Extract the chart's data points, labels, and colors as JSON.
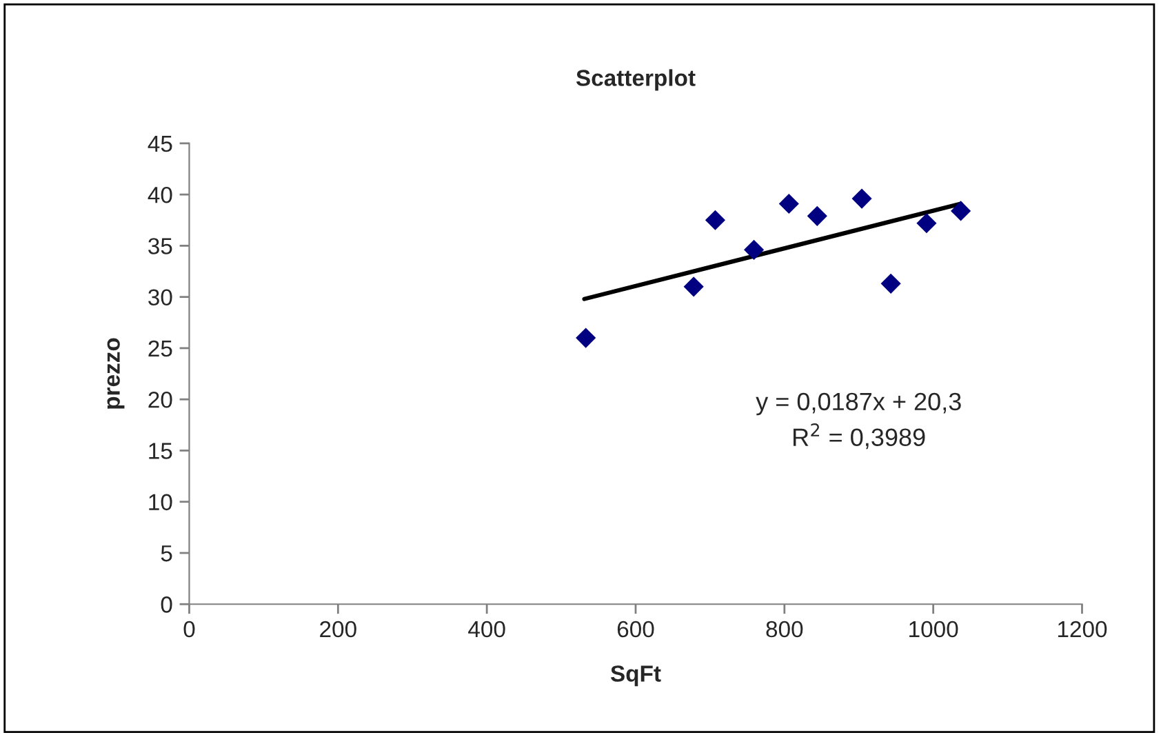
{
  "chart_data": {
    "type": "scatter",
    "title": "Scatterplot",
    "xlabel": "SqFt",
    "ylabel": "prezzo",
    "series": [
      {
        "color": "#000080",
        "marker": "diamond",
        "x": [
          533,
          678,
          707,
          759,
          806,
          844,
          904,
          943,
          991,
          1037
        ],
        "values": [
          26.0,
          31.0,
          37.5,
          34.6,
          39.1,
          37.9,
          39.6,
          31.3,
          37.2,
          38.4
        ]
      },
      {
        "type": "line",
        "color": "#000000",
        "marker": "none",
        "line_style": "solid",
        "x": [
          531,
          1037
        ],
        "values": [
          29.8,
          39.1
        ]
      }
    ],
    "annotations": [
      "y = 0,0187x + 20,3",
      "R$^{2}$ = 0,3989"
    ],
    "xlim": [
      0,
      1200
    ],
    "xticks": [
      0,
      200,
      400,
      600,
      800,
      1000,
      1200
    ],
    "ylim": [
      0,
      45
    ],
    "yticks": [
      0,
      5,
      10,
      15,
      20,
      25,
      30,
      35,
      40,
      45
    ],
    "grid": false,
    "legend": false
  }
}
